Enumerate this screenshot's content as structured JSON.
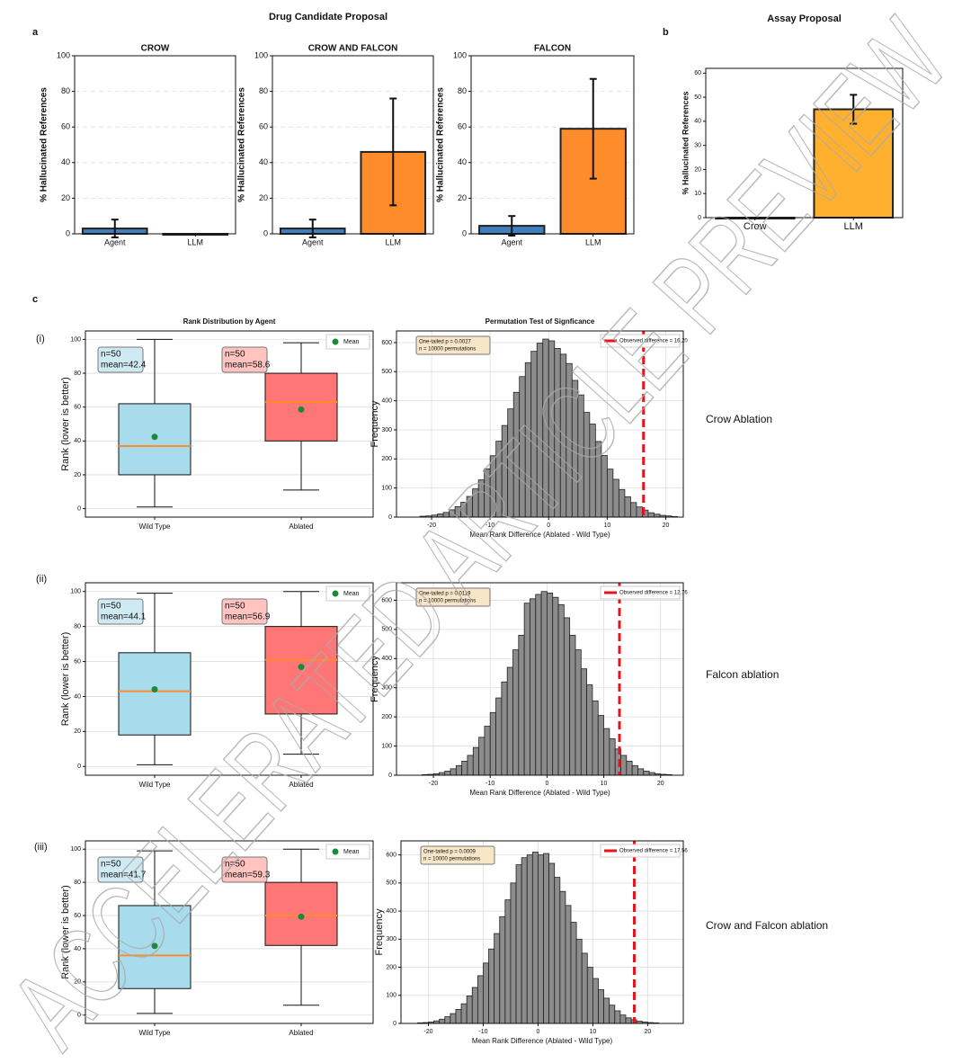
{
  "figure": {
    "title_a": "Drug Candidate Proposal",
    "panel_a": "a",
    "panel_b": "b",
    "panel_c": "c",
    "rows": [
      "(i)",
      "(ii)",
      "(iii)"
    ],
    "row_labels": [
      "Crow Ablation",
      "Falcon ablation",
      "Crow and Falcon ablation"
    ],
    "watermark": "ACCELERATED ARTICLE PREVIEW"
  },
  "chart_data": [
    {
      "type": "bar",
      "title": "CROW",
      "ylabel": "% Hallucinated References",
      "categories": [
        "Agent",
        "LLM"
      ],
      "values": [
        3,
        0
      ],
      "errors": [
        5,
        0
      ],
      "colors": [
        "#3f7fbf",
        "#ff8c2a"
      ],
      "ylim": [
        0,
        100
      ],
      "yticks": [
        0,
        20,
        40,
        60,
        80,
        100
      ],
      "grid": true
    },
    {
      "type": "bar",
      "title": "CROW AND FALCON",
      "ylabel": "% Hallucinated References",
      "categories": [
        "Agent",
        "LLM"
      ],
      "values": [
        3,
        46
      ],
      "errors": [
        5,
        30
      ],
      "colors": [
        "#3f7fbf",
        "#ff8c2a"
      ],
      "ylim": [
        0,
        100
      ],
      "yticks": [
        0,
        20,
        40,
        60,
        80,
        100
      ],
      "grid": true
    },
    {
      "type": "bar",
      "title": "FALCON",
      "ylabel": "% Hallucinated References",
      "categories": [
        "Agent",
        "LLM"
      ],
      "values": [
        4.5,
        59
      ],
      "errors": [
        5.5,
        28
      ],
      "colors": [
        "#3f7fbf",
        "#ff8c2a"
      ],
      "ylim": [
        0,
        100
      ],
      "yticks": [
        0,
        20,
        40,
        60,
        80,
        100
      ],
      "grid": true
    },
    {
      "type": "bar",
      "title": "Assay Proposal",
      "ylabel": "% Hallucinated References",
      "categories": [
        "Crow",
        "LLM"
      ],
      "values": [
        0,
        45
      ],
      "errors": [
        0,
        6
      ],
      "colors": [
        "#3f7fbf",
        "#ffb02e"
      ],
      "ylim": [
        0,
        62
      ],
      "yticks": [
        0,
        10,
        20,
        30,
        40,
        50,
        60
      ],
      "grid": false
    },
    {
      "type": "box",
      "title": "Rank Distribution by Agent",
      "ylabel": "Rank (lower is better)",
      "categories": [
        "Wild Type",
        "Ablated"
      ],
      "legend": "Mean",
      "mean_color": "#1a8a3a",
      "median_color": "#ff8c2a",
      "boxes": [
        {
          "color": "#a8dcec",
          "whislo": 1,
          "q1": 20,
          "median": 37,
          "q3": 62,
          "whishi": 100,
          "mean": 42.4,
          "annotation": [
            "n=50",
            "mean=42.4"
          ]
        },
        {
          "color": "#ff7676",
          "whislo": 11,
          "q1": 40,
          "median": 63,
          "q3": 80,
          "whishi": 98,
          "mean": 58.6,
          "annotation": [
            "n=50",
            "mean=58.6"
          ]
        }
      ],
      "ylim": [
        -5,
        105
      ],
      "yticks": [
        0,
        20,
        40,
        60,
        80,
        100
      ],
      "grid": true
    },
    {
      "type": "histogram",
      "title": "Permutation Test of Signficance",
      "xlabel": "Mean Rank Difference (Ablated - Wild Type)",
      "ylabel": "Frequency",
      "color": "#8c8c8c",
      "annotation": [
        "One-tailed p = 0.0027",
        "n = 10000 permutations"
      ],
      "observed": 16.2,
      "observed_name": "Observed difference = 16.20",
      "observed_color": "#e8141c",
      "bins": [
        -22,
        -21,
        -20,
        -19,
        -18,
        -17,
        -16,
        -15,
        -14,
        -13,
        -12,
        -11,
        -10,
        -9,
        -8,
        -7,
        -6,
        -5,
        -4,
        -3,
        -2,
        -1,
        0,
        1,
        2,
        3,
        4,
        5,
        6,
        7,
        8,
        9,
        10,
        11,
        12,
        13,
        14,
        15,
        16,
        17,
        18,
        19,
        20,
        21,
        22
      ],
      "counts": [
        3,
        4,
        7,
        11,
        16,
        25,
        36,
        51,
        71,
        97,
        128,
        166,
        211,
        261,
        315,
        372,
        429,
        483,
        531,
        570,
        598,
        612,
        606,
        580,
        560,
        528,
        470,
        420,
        360,
        320,
        260,
        212,
        165,
        130,
        95,
        70,
        50,
        35,
        24,
        15,
        10,
        6,
        4,
        2
      ],
      "xlim": [
        -26,
        23
      ],
      "xticks": [
        -20,
        -10,
        0,
        10,
        20
      ],
      "ylim": [
        0,
        640
      ],
      "yticks": [
        0,
        100,
        200,
        300,
        400,
        500,
        600
      ],
      "grid": true
    },
    {
      "type": "box",
      "ylabel": "Rank (lower is better)",
      "categories": [
        "Wild Type",
        "Ablated"
      ],
      "legend": "Mean",
      "mean_color": "#1a8a3a",
      "median_color": "#ff8c2a",
      "boxes": [
        {
          "color": "#a8dcec",
          "whislo": 1,
          "q1": 18,
          "median": 43,
          "q3": 65,
          "whishi": 99,
          "mean": 44.1,
          "annotation": [
            "n=50",
            "mean=44.1"
          ]
        },
        {
          "color": "#ff7676",
          "whislo": 7,
          "q1": 30,
          "median": 61,
          "q3": 80,
          "whishi": 100,
          "mean": 56.9,
          "annotation": [
            "n=50",
            "mean=56.9"
          ]
        }
      ],
      "ylim": [
        -5,
        105
      ],
      "yticks": [
        0,
        20,
        40,
        60,
        80,
        100
      ],
      "grid": true
    },
    {
      "type": "histogram",
      "xlabel": "Mean Rank Difference (Ablated - Wild Type)",
      "ylabel": "Frequency",
      "color": "#8c8c8c",
      "annotation": [
        "One-tailed p = 0.0119",
        "n = 10000 permutations"
      ],
      "observed": 12.76,
      "observed_name": "Observed difference = 12.76",
      "observed_color": "#e8141c",
      "bins": [
        -22,
        -21,
        -20,
        -19,
        -18,
        -17,
        -16,
        -15,
        -14,
        -13,
        -12,
        -11,
        -10,
        -9,
        -8,
        -7,
        -6,
        -5,
        -4,
        -3,
        -2,
        -1,
        0,
        1,
        2,
        3,
        4,
        5,
        6,
        7,
        8,
        9,
        10,
        11,
        12,
        13,
        14,
        15,
        16,
        17,
        18,
        19,
        20,
        21,
        22
      ],
      "counts": [
        2,
        3,
        5,
        9,
        14,
        22,
        33,
        48,
        68,
        95,
        130,
        168,
        215,
        265,
        320,
        370,
        430,
        480,
        590,
        605,
        620,
        630,
        625,
        610,
        585,
        540,
        480,
        430,
        365,
        310,
        255,
        205,
        160,
        125,
        90,
        68,
        48,
        33,
        22,
        14,
        9,
        5,
        3,
        2
      ],
      "xlim": [
        -26.5,
        24
      ],
      "xticks": [
        -20,
        -10,
        0,
        10,
        20
      ],
      "ylim": [
        0,
        660
      ],
      "yticks": [
        0,
        100,
        200,
        300,
        400,
        500,
        600
      ],
      "grid": true
    },
    {
      "type": "box",
      "ylabel": "Rank (lower is better)",
      "categories": [
        "Wild Type",
        "Ablated"
      ],
      "legend": "Mean",
      "mean_color": "#1a8a3a",
      "median_color": "#ff8c2a",
      "boxes": [
        {
          "color": "#a8dcec",
          "whislo": 1,
          "q1": 16,
          "median": 36,
          "q3": 66,
          "whishi": 99,
          "mean": 41.7,
          "annotation": [
            "n=50",
            "mean=41.7"
          ]
        },
        {
          "color": "#ff7676",
          "whislo": 6,
          "q1": 42,
          "median": 60,
          "q3": 80,
          "whishi": 100,
          "mean": 59.3,
          "annotation": [
            "n=50",
            "mean=59.3"
          ]
        }
      ],
      "ylim": [
        -5,
        105
      ],
      "yticks": [
        0,
        20,
        40,
        60,
        80,
        100
      ],
      "grid": true
    },
    {
      "type": "histogram",
      "xlabel": "Mean Rank Difference (Ablated - Wild Type)",
      "ylabel": "Frequency",
      "color": "#8c8c8c",
      "annotation": [
        "One-tailed p = 0.0009",
        "n = 10000 permutations"
      ],
      "observed": 17.56,
      "observed_name": "Observed difference = 17.56",
      "observed_color": "#e8141c",
      "bins": [
        -22,
        -21,
        -20,
        -19,
        -18,
        -17,
        -16,
        -15,
        -14,
        -13,
        -12,
        -11,
        -10,
        -9,
        -8,
        -7,
        -6,
        -5,
        -4,
        -3,
        -2,
        -1,
        0,
        1,
        2,
        3,
        4,
        5,
        6,
        7,
        8,
        9,
        10,
        11,
        12,
        13,
        14,
        15,
        16,
        17,
        18,
        19,
        20,
        21,
        22
      ],
      "counts": [
        2,
        3,
        5,
        9,
        15,
        24,
        35,
        50,
        70,
        98,
        128,
        170,
        215,
        265,
        320,
        380,
        440,
        500,
        565,
        590,
        600,
        610,
        600,
        605,
        570,
        520,
        470,
        420,
        360,
        300,
        250,
        200,
        160,
        120,
        90,
        65,
        45,
        30,
        20,
        13,
        8,
        5,
        3,
        2
      ],
      "xlim": [
        -25,
        26.5
      ],
      "xticks": [
        -20,
        -10,
        0,
        10,
        20
      ],
      "ylim": [
        0,
        650
      ],
      "yticks": [
        0,
        100,
        200,
        300,
        400,
        500,
        600
      ],
      "grid": true
    }
  ]
}
